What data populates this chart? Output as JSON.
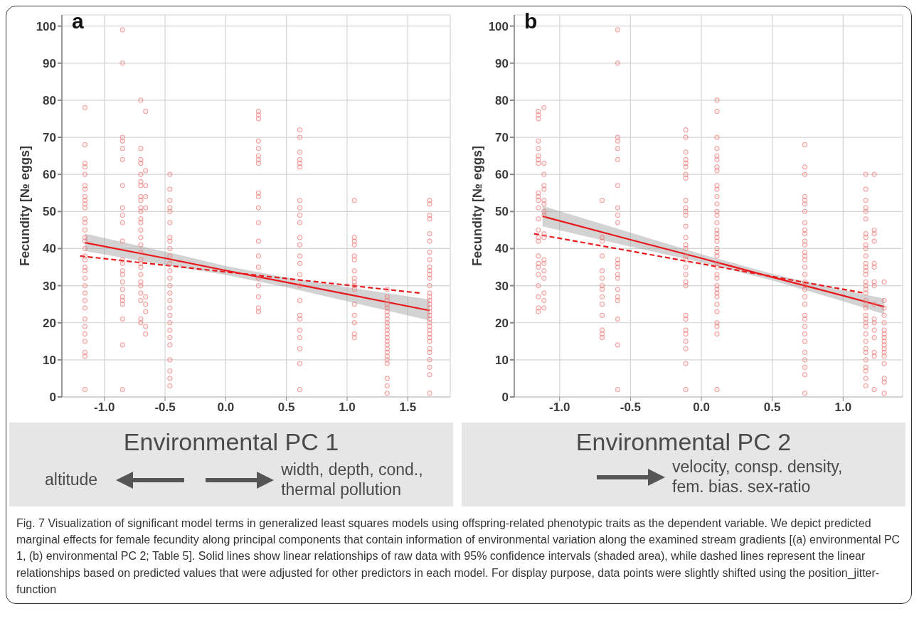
{
  "chart_data": [
    {
      "type": "scatter",
      "title": "a",
      "xlabel": "Environmental PC 1",
      "ylabel": "Fecundity [№ eggs]",
      "xlim": [
        -1.35,
        1.85
      ],
      "ylim": [
        0,
        103
      ],
      "xticks": [
        {
          "value": -1,
          "label": "-1.0"
        },
        {
          "value": -0.5,
          "label": "-0.5"
        },
        {
          "value": 0,
          "label": "0.0"
        },
        {
          "value": 0.5,
          "label": "0.5"
        },
        {
          "value": 1,
          "label": "1.0"
        },
        {
          "value": 1.5,
          "label": "1.5"
        }
      ],
      "yticks": [
        0,
        10,
        20,
        30,
        40,
        50,
        60,
        70,
        80,
        90,
        100
      ],
      "grid": true,
      "marker": "circle",
      "annotations": [
        "altitude",
        "width, depth, cond., thermal pollution"
      ],
      "series": [
        {
          "color": "#ee7777",
          "x": [
            -1.16,
            -1.16,
            -1.16,
            -1.16,
            -1.16,
            -1.16,
            -1.16,
            -1.16,
            -1.16,
            -1.16,
            -1.16,
            -1.16,
            -1.16,
            -1.16,
            -1.16,
            -1.16,
            -1.16,
            -1.16,
            -1.16,
            -1.16,
            -1.16,
            -1.16,
            -1.16,
            -1.16,
            -1.16,
            -1.16,
            -1.16,
            -1.16,
            -1.16,
            -1.16,
            -1.16,
            -1.16,
            -1.16
          ],
          "values": [
            78,
            68,
            63,
            62,
            60,
            57,
            56,
            54,
            53,
            52,
            51,
            48,
            47,
            45,
            43,
            42,
            40,
            38,
            37,
            35,
            34,
            32,
            30,
            28,
            26,
            24,
            21,
            19,
            17,
            15,
            12,
            11,
            2
          ]
        },
        {
          "color": "#ee7777",
          "x": [
            -0.85,
            -0.85,
            -0.85,
            -0.85,
            -0.85,
            -0.85,
            -0.85,
            -0.85,
            -0.85,
            -0.85,
            -0.85,
            -0.85,
            -0.85,
            -0.85,
            -0.85,
            -0.85,
            -0.85,
            -0.85,
            -0.85,
            -0.85,
            -0.85,
            -0.85,
            -0.85
          ],
          "values": [
            99,
            90,
            70,
            69,
            67,
            64,
            57,
            51,
            49,
            47,
            42,
            37,
            36,
            34,
            33,
            31,
            29,
            27,
            26,
            25,
            21,
            14,
            2
          ]
        },
        {
          "color": "#ee7777",
          "x": [
            -0.7,
            -0.7,
            -0.7,
            -0.7,
            -0.7,
            -0.7,
            -0.7,
            -0.7,
            -0.7,
            -0.7,
            -0.7,
            -0.7,
            -0.7,
            -0.7,
            -0.7,
            -0.7,
            -0.7,
            -0.7,
            -0.7,
            -0.7,
            -0.7,
            -0.7,
            -0.7,
            -0.7,
            -0.7,
            -0.7,
            -0.7
          ],
          "values": [
            80,
            67,
            64,
            63,
            60,
            58,
            57,
            54,
            53,
            51,
            50,
            48,
            47,
            45,
            43,
            41,
            39,
            37,
            36,
            35,
            33,
            31,
            30,
            28,
            26,
            21,
            20
          ]
        },
        {
          "color": "#ee7777",
          "x": [
            -0.66,
            -0.66,
            -0.66,
            -0.66,
            -0.66,
            -0.66,
            -0.66,
            -0.66,
            -0.66,
            -0.66
          ],
          "values": [
            77,
            61,
            57,
            54,
            51,
            27,
            25,
            23,
            19,
            17
          ]
        },
        {
          "color": "#ee7777",
          "x": [
            -0.46,
            -0.46,
            -0.46,
            -0.46,
            -0.46,
            -0.46,
            -0.46,
            -0.46,
            -0.46,
            -0.46,
            -0.46,
            -0.46,
            -0.46,
            -0.46,
            -0.46,
            -0.46,
            -0.46,
            -0.46,
            -0.46,
            -0.46,
            -0.46,
            -0.46,
            -0.46,
            -0.46,
            -0.46,
            -0.46
          ],
          "values": [
            60,
            56,
            53,
            51,
            50,
            47,
            43,
            42,
            40,
            38,
            36,
            34,
            32,
            30,
            28,
            26,
            24,
            22,
            20,
            18,
            16,
            14,
            10,
            7,
            5,
            3
          ]
        },
        {
          "color": "#ee7777",
          "x": [
            0.27,
            0.27,
            0.27,
            0.27,
            0.27,
            0.27,
            0.27,
            0.27,
            0.27,
            0.27,
            0.27,
            0.27,
            0.27,
            0.27,
            0.27,
            0.27,
            0.27,
            0.27,
            0.27,
            0.27
          ],
          "values": [
            77,
            76,
            75,
            69,
            67,
            65,
            64,
            63,
            55,
            54,
            51,
            47,
            42,
            38,
            35,
            32,
            30,
            27,
            24,
            23
          ]
        },
        {
          "color": "#ee7777",
          "x": [
            0.61,
            0.61,
            0.61,
            0.61,
            0.61,
            0.61,
            0.61,
            0.61,
            0.61,
            0.61,
            0.61,
            0.61,
            0.61,
            0.61,
            0.61,
            0.61,
            0.61,
            0.61,
            0.61,
            0.61,
            0.61,
            0.61,
            0.61,
            0.61
          ],
          "values": [
            72,
            70,
            66,
            64,
            63,
            62,
            53,
            51,
            49,
            47,
            43,
            41,
            38,
            36,
            33,
            30,
            26,
            22,
            21,
            18,
            16,
            13,
            9,
            2
          ]
        },
        {
          "color": "#ee7777",
          "x": [
            1.06,
            1.06,
            1.06,
            1.06,
            1.06,
            1.06,
            1.06,
            1.06,
            1.06,
            1.06,
            1.06,
            1.06,
            1.06,
            1.06,
            1.06,
            1.06
          ],
          "values": [
            53,
            43,
            42,
            41,
            38,
            37,
            34,
            32,
            31,
            30,
            29,
            25,
            22,
            20,
            17,
            16
          ]
        },
        {
          "color": "#ee7777",
          "x": [
            1.33,
            1.33,
            1.33,
            1.33,
            1.33,
            1.33,
            1.33,
            1.33,
            1.33,
            1.33,
            1.33,
            1.33,
            1.33,
            1.33,
            1.33,
            1.33,
            1.33,
            1.33,
            1.33,
            1.33,
            1.33,
            1.33,
            1.33
          ],
          "values": [
            29,
            27,
            26,
            25,
            24,
            23,
            22,
            21,
            20,
            19,
            18,
            17,
            16,
            15,
            14,
            13,
            12,
            11,
            10,
            9,
            5,
            3,
            1
          ]
        },
        {
          "color": "#ee7777",
          "x": [
            1.68,
            1.68,
            1.68,
            1.68,
            1.68,
            1.68,
            1.68,
            1.68,
            1.68,
            1.68,
            1.68,
            1.68,
            1.68,
            1.68,
            1.68,
            1.68,
            1.68,
            1.68,
            1.68,
            1.68,
            1.68,
            1.68,
            1.68,
            1.68,
            1.68,
            1.68,
            1.68,
            1.68,
            1.68,
            1.68,
            1.68,
            1.68,
            1.68
          ],
          "values": [
            53,
            52,
            49,
            48,
            44,
            42,
            39,
            37,
            35,
            34,
            33,
            32,
            30,
            28,
            27,
            26,
            25,
            24,
            23,
            22,
            21,
            20,
            19,
            18,
            17,
            16,
            15,
            13,
            12,
            10,
            8,
            6,
            1
          ]
        },
        {
          "type": "line",
          "marker": "none",
          "color": "#e8191c",
          "line_style": "solid",
          "x": [
            -1.16,
            -0.5,
            0,
            0.5,
            1,
            1.68
          ],
          "values": [
            41.6,
            37.4,
            34.1,
            30.9,
            27.7,
            23.3
          ],
          "lower": [
            39.3,
            35.6,
            32.9,
            29.6,
            25.8,
            20.6
          ],
          "upper": [
            44,
            39.2,
            35.3,
            32.2,
            29.6,
            26.3
          ]
        },
        {
          "type": "line",
          "marker": "none",
          "color": "#e8191c",
          "line_style": "dashed",
          "x": [
            -1.2,
            1.6
          ],
          "values": [
            38,
            28
          ]
        }
      ]
    },
    {
      "type": "scatter",
      "title": "b",
      "xlabel": "Environmental PC 2",
      "ylabel": "Fecundity [№ eggs]",
      "xlim": [
        -1.32,
        1.42
      ],
      "ylim": [
        0,
        103
      ],
      "xticks": [
        {
          "value": -1,
          "label": "-1.0"
        },
        {
          "value": -0.5,
          "label": "-0.5"
        },
        {
          "value": 0,
          "label": "0.0"
        },
        {
          "value": 0.5,
          "label": "0.5"
        },
        {
          "value": 1,
          "label": "1.0"
        }
      ],
      "yticks": [
        0,
        10,
        20,
        30,
        40,
        50,
        60,
        70,
        80,
        90,
        100
      ],
      "grid": true,
      "marker": "circle",
      "annotations": [
        "velocity, consp. density, fem. bias. sex-ratio"
      ],
      "series": [
        {
          "color": "#ee7777",
          "x": [
            -1.15,
            -1.15,
            -1.15,
            -1.15,
            -1.15,
            -1.15,
            -1.15,
            -1.15,
            -1.15,
            -1.15,
            -1.15,
            -1.15,
            -1.15,
            -1.15,
            -1.15,
            -1.15,
            -1.15,
            -1.15,
            -1.15,
            -1.15,
            -1.15,
            -1.15,
            -1.15,
            -1.15
          ],
          "values": [
            77,
            76,
            75,
            69,
            67,
            65,
            64,
            63,
            55,
            54,
            53,
            51,
            48,
            45,
            43,
            42,
            38,
            36,
            35,
            33,
            30,
            27,
            24,
            23
          ]
        },
        {
          "color": "#ee7777",
          "x": [
            -1.11,
            -1.11,
            -1.11,
            -1.11,
            -1.11,
            -1.11,
            -1.11,
            -1.11,
            -1.11,
            -1.11,
            -1.11,
            -1.11,
            -1.11,
            -1.11,
            -1.11,
            -1.11,
            -1.11,
            -1.11
          ],
          "values": [
            78,
            63,
            60,
            57,
            56,
            53,
            52,
            50,
            49,
            44,
            43,
            37,
            36,
            34,
            32,
            28,
            26,
            24
          ]
        },
        {
          "color": "#ee7777",
          "x": [
            -0.7,
            -0.7,
            -0.7,
            -0.7,
            -0.7,
            -0.7,
            -0.7,
            -0.7,
            -0.7,
            -0.7,
            -0.7,
            -0.7,
            -0.7,
            -0.7
          ],
          "values": [
            53,
            43,
            42,
            38,
            34,
            32,
            30,
            29,
            27,
            25,
            22,
            18,
            17,
            16
          ]
        },
        {
          "color": "#ee7777",
          "x": [
            -0.59,
            -0.59,
            -0.59,
            -0.59,
            -0.59,
            -0.59,
            -0.59,
            -0.59,
            -0.59,
            -0.59,
            -0.59,
            -0.59,
            -0.59,
            -0.59,
            -0.59,
            -0.59,
            -0.59,
            -0.59,
            -0.59,
            -0.59,
            -0.59
          ],
          "values": [
            99,
            90,
            70,
            69,
            67,
            64,
            57,
            51,
            49,
            47,
            37,
            36,
            35,
            33,
            32,
            29,
            27,
            26,
            21,
            14,
            2
          ]
        },
        {
          "color": "#ee7777",
          "x": [
            -0.11,
            -0.11,
            -0.11,
            -0.11,
            -0.11,
            -0.11,
            -0.11,
            -0.11,
            -0.11,
            -0.11,
            -0.11,
            -0.11,
            -0.11,
            -0.11,
            -0.11,
            -0.11,
            -0.11,
            -0.11,
            -0.11,
            -0.11,
            -0.11,
            -0.11,
            -0.11,
            -0.11,
            -0.11,
            -0.11,
            -0.11,
            -0.11,
            -0.11,
            -0.11
          ],
          "values": [
            72,
            70,
            66,
            64,
            63,
            62,
            60,
            59,
            53,
            51,
            50,
            49,
            46,
            43,
            41,
            40,
            38,
            37,
            35,
            33,
            31,
            30,
            22,
            21,
            18,
            17,
            15,
            13,
            9,
            2
          ]
        },
        {
          "color": "#ee7777",
          "x": [
            0.11,
            0.11,
            0.11,
            0.11,
            0.11,
            0.11,
            0.11,
            0.11,
            0.11,
            0.11,
            0.11,
            0.11,
            0.11,
            0.11,
            0.11,
            0.11,
            0.11,
            0.11,
            0.11,
            0.11,
            0.11,
            0.11,
            0.11,
            0.11,
            0.11,
            0.11,
            0.11,
            0.11,
            0.11,
            0.11,
            0.11,
            0.11,
            0.11,
            0.11,
            0.11,
            0.11
          ],
          "values": [
            80,
            77,
            70,
            67,
            65,
            64,
            62,
            61,
            57,
            56,
            54,
            52,
            50,
            49,
            47,
            45,
            44,
            43,
            42,
            40,
            39,
            38,
            36,
            35,
            33,
            32,
            30,
            29,
            28,
            27,
            25,
            23,
            20,
            19,
            17,
            2
          ]
        },
        {
          "color": "#ee7777",
          "x": [
            0.73,
            0.73,
            0.73,
            0.73,
            0.73,
            0.73,
            0.73,
            0.73,
            0.73,
            0.73,
            0.73,
            0.73,
            0.73,
            0.73,
            0.73,
            0.73,
            0.73,
            0.73,
            0.73,
            0.73,
            0.73,
            0.73,
            0.73,
            0.73,
            0.73,
            0.73,
            0.73,
            0.73,
            0.73,
            0.73,
            0.73,
            0.73
          ],
          "values": [
            68,
            62,
            60,
            54,
            53,
            52,
            50,
            47,
            45,
            44,
            42,
            41,
            39,
            38,
            37,
            35,
            33,
            31,
            30,
            29,
            27,
            25,
            22,
            21,
            19,
            17,
            15,
            12,
            10,
            8,
            6,
            1
          ]
        },
        {
          "color": "#ee7777",
          "x": [
            1.16,
            1.16,
            1.16,
            1.16,
            1.16,
            1.16,
            1.16,
            1.16,
            1.16,
            1.16,
            1.16,
            1.16,
            1.16,
            1.16,
            1.16,
            1.16,
            1.16,
            1.16,
            1.16,
            1.16,
            1.16,
            1.16,
            1.16,
            1.16,
            1.16,
            1.16,
            1.16,
            1.16,
            1.16,
            1.16,
            1.16,
            1.16,
            1.16,
            1.16,
            1.16
          ],
          "values": [
            60,
            56,
            53,
            51,
            50,
            48,
            44,
            43,
            41,
            40,
            38,
            36,
            35,
            34,
            33,
            31,
            30,
            29,
            28,
            26,
            25,
            24,
            22,
            21,
            20,
            19,
            17,
            15,
            13,
            12,
            10,
            8,
            7,
            5,
            3
          ]
        },
        {
          "color": "#ee7777",
          "x": [
            1.22,
            1.22,
            1.22,
            1.22,
            1.22,
            1.22,
            1.22,
            1.22,
            1.22,
            1.22,
            1.22,
            1.22,
            1.22,
            1.22,
            1.22,
            1.22
          ],
          "values": [
            60,
            45,
            44,
            42,
            36,
            35,
            31,
            30,
            25,
            21,
            20,
            18,
            16,
            12,
            11,
            2
          ]
        },
        {
          "color": "#ee7777",
          "x": [
            1.29,
            1.29,
            1.29,
            1.29,
            1.29,
            1.29,
            1.29,
            1.29,
            1.29,
            1.29,
            1.29,
            1.29,
            1.29,
            1.29,
            1.29,
            1.29,
            1.29
          ],
          "values": [
            31,
            26,
            24,
            22,
            20,
            18,
            17,
            16,
            15,
            14,
            13,
            12,
            11,
            9,
            5,
            4,
            1
          ]
        },
        {
          "type": "line",
          "marker": "none",
          "color": "#e8191c",
          "line_style": "solid",
          "x": [
            -1.12,
            -0.5,
            0,
            0.5,
            1,
            1.29
          ],
          "values": [
            48.7,
            42.4,
            37.4,
            32.3,
            27.3,
            24.3
          ],
          "lower": [
            46,
            40.5,
            36.3,
            31.4,
            25.8,
            22.3
          ],
          "upper": [
            51.5,
            44.3,
            38.5,
            33.2,
            28.8,
            26.5
          ]
        },
        {
          "type": "line",
          "marker": "none",
          "color": "#e8191c",
          "line_style": "dashed",
          "x": [
            -1.18,
            1.15
          ],
          "values": [
            44,
            28
          ]
        }
      ]
    },
    {
      "type": "other",
      "annotations": [
        "Fig. 7 Visualization of significant model terms in generalized least squares models using offspring-related phenotypic traits as the dependent variable. We depict predicted marginal effects for female fecundity along principal components that contain information of environmental variation along the examined stream gradients [(a) environmental PC 1, (b) environmental PC 2; Table 5]. Solid lines show linear relationships of raw data with 95% confidence intervals (shaded area), while dashed lines represent the linear relationships based on predicted values that were adjusted for other predictors in each model. For display purpose, data points were slightly shifted using the position_jitter-function"
      ]
    }
  ]
}
